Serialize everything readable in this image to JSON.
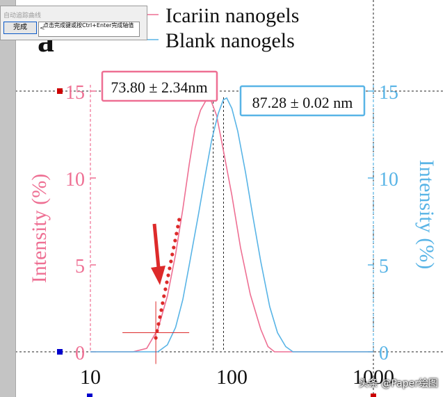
{
  "dialog": {
    "title": "自动追踪曲线",
    "button_label": "完成",
    "hint_text": "点击完成键或按Ctrl+Enter完成轴值",
    "hint_arrow": "<"
  },
  "panel_label": "a",
  "watermark": "头条 @Paper绘图",
  "colors": {
    "pink": "#ee6f93",
    "blue": "#58b4e6",
    "red": "#dd2a2a",
    "marker_red": "#cc0000",
    "marker_blue": "#0000cc"
  },
  "chart_data": {
    "type": "line",
    "x_scale": "log",
    "xlim": [
      10,
      1000
    ],
    "x_ticks": [
      "10",
      "100",
      "1000"
    ],
    "ylim_left": [
      0,
      15
    ],
    "ylim_right": [
      0,
      15
    ],
    "y_ticks_left": [
      "0",
      "5",
      "10",
      "15"
    ],
    "y_ticks_right": [
      "0",
      "5",
      "10",
      "15"
    ],
    "ylabel_left": "Intensity (%)",
    "ylabel_right": "Intensity (%)",
    "legend": [
      {
        "name": "Icariin nanogels",
        "color": "#ee6f93"
      },
      {
        "name": "Blank nanogels",
        "color": "#58b4e6"
      }
    ],
    "series": [
      {
        "name": "Icariin nanogels",
        "color": "#ee6f93",
        "x": [
          10,
          20,
          25,
          30,
          35,
          40,
          45,
          50,
          55,
          60,
          65,
          70,
          78,
          87,
          100,
          115,
          135,
          160,
          180,
          200,
          230,
          1000
        ],
        "y": [
          0,
          0,
          0.2,
          1.3,
          3.2,
          5.6,
          8.2,
          10.8,
          12.9,
          13.9,
          14.4,
          14.6,
          13.6,
          11.6,
          9.0,
          6.0,
          3.3,
          1.3,
          0.3,
          0,
          0,
          0
        ]
      },
      {
        "name": "Blank nanogels",
        "color": "#58b4e6",
        "x": [
          10,
          30,
          35,
          40,
          45,
          50,
          58,
          65,
          72,
          80,
          87,
          92,
          100,
          110,
          125,
          140,
          160,
          185,
          210,
          240,
          270,
          300,
          1000
        ],
        "y": [
          0,
          0,
          0.4,
          1.4,
          3.0,
          5.0,
          7.9,
          10.2,
          12.2,
          13.7,
          14.5,
          14.6,
          14.0,
          12.7,
          10.3,
          7.9,
          5.2,
          2.6,
          1.1,
          0.3,
          0,
          0,
          0
        ]
      }
    ],
    "annotations": [
      {
        "text": "73.80 ± 2.34nm",
        "color": "#ee6f93",
        "x_line": 73.8
      },
      {
        "text": "87.28 ± 0.02 nm",
        "color": "#58b4e6",
        "x_line": 87.28
      }
    ],
    "trace_points": {
      "color": "#dd2a2a",
      "x": [
        29,
        29.6,
        30.3,
        31,
        31.7,
        32.4,
        33.1,
        33.9,
        34.7,
        35.5,
        36.3,
        37.1,
        37.9,
        38.8,
        39.7,
        40.6,
        41.5,
        42.4
      ],
      "y": [
        0.8,
        1.2,
        1.6,
        2.0,
        2.4,
        2.8,
        3.2,
        3.6,
        4.0,
        4.4,
        4.8,
        5.2,
        5.6,
        6.0,
        6.4,
        6.8,
        7.2,
        7.6
      ]
    },
    "crosshair": {
      "x": 29,
      "y": 1.1
    },
    "hline": {
      "y": 15
    },
    "baseline": {
      "y": 0
    }
  }
}
